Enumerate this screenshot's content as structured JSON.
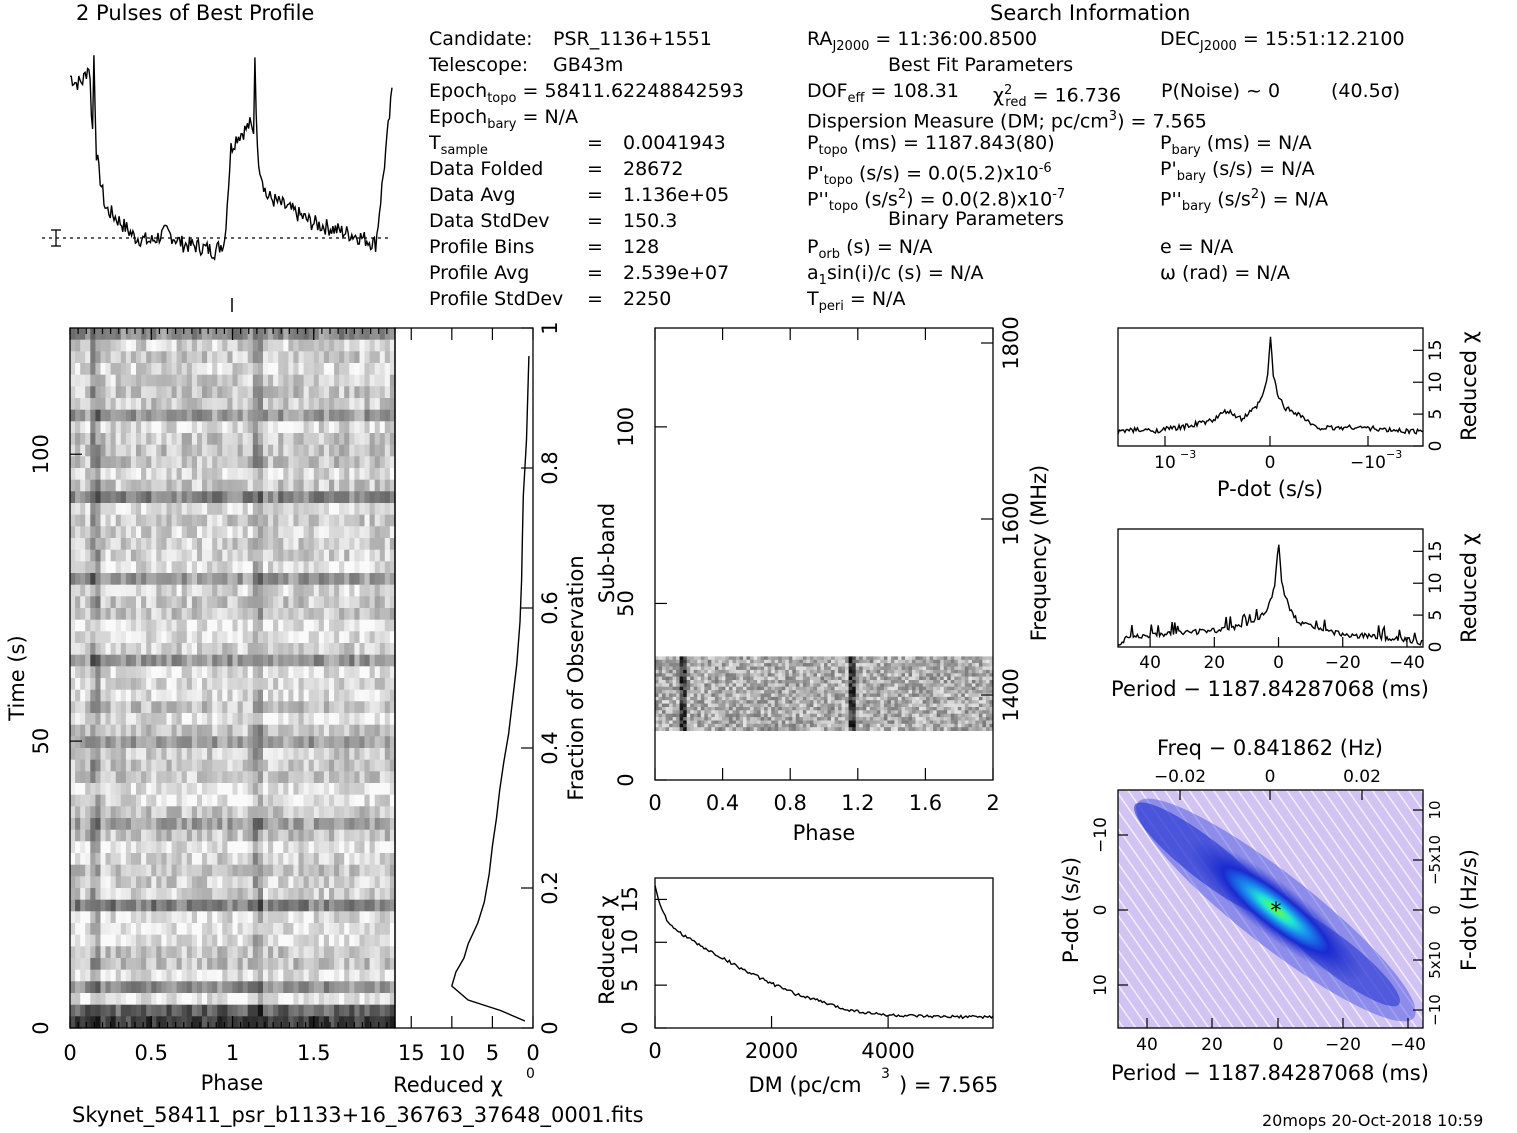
{
  "titles": {
    "profile": "2 Pulses of Best Profile",
    "search": "Search Information",
    "best_fit": "Best Fit Parameters",
    "binary": "Binary Parameters"
  },
  "info_left": {
    "candidate_label": "Candidate:",
    "candidate": "PSR_1136+1551",
    "telescope_label": "Telescope:",
    "telescope": "GB43m",
    "epoch_topo_label": "Epoch",
    "epoch_topo_sub": "topo",
    "epoch_topo": "= 58411.62248842593",
    "epoch_bary_label": "Epoch",
    "epoch_bary_sub": "bary",
    "epoch_bary": "= N/A",
    "tsample_label": "T",
    "tsample_sub": "sample",
    "tsample": "0.0041943",
    "data_folded_label": "Data Folded",
    "data_folded": "28672",
    "data_avg_label": "Data Avg",
    "data_avg": "1.136e+05",
    "data_std_label": "Data StdDev",
    "data_std": "150.3",
    "profile_bins_label": "Profile Bins",
    "profile_bins": "128",
    "profile_avg_label": "Profile Avg",
    "profile_avg": "2.539e+07",
    "profile_std_label": "Profile StdDev",
    "profile_std": "2250",
    "eq": "="
  },
  "info_mid": {
    "ra_label": "RA",
    "ra_sub": "J2000",
    "ra": "= 11:36:00.8500",
    "dof_label": "DOF",
    "dof_sub": "eff",
    "dof": "= 108.31",
    "chi_label": "χ",
    "chi_sup": "2",
    "chi_sub": "red",
    "chi": "= 16.736",
    "pnoise": "P(Noise) ~ 0",
    "sigma": "(40.5σ)",
    "dm_label": "Dispersion Measure (DM; pc/cm",
    "dm_sup": "3",
    "dm": ") = 7.565",
    "ptopo_label": "P",
    "ptopo_sub": "topo",
    "ptopo": "(ms) =  1187.843(80)",
    "pdtopo_label": "P'",
    "pdtopo_sub": "topo",
    "pdtopo": "(s/s) = 0.0(5.2)x10",
    "pdtopo_exp": "-6",
    "pddtopo_label": "P''",
    "pddtopo_sub": "topo",
    "pddtopo": "(s/s",
    "pddtopo_sup": "2",
    "pddtopo_rest": ") = 0.0(2.8)x10",
    "pddtopo_exp": "-7",
    "porb_label": "P",
    "porb_sub": "orb",
    "porb": "(s) = N/A",
    "a1_label": "a",
    "a1_sub": "1",
    "a1": "sin(i)/c (s) = N/A",
    "tperi_label": "T",
    "tperi_sub": "peri",
    "tperi": "= N/A"
  },
  "info_right": {
    "dec_label": "DEC",
    "dec_sub": "J2000",
    "dec": "= 15:51:12.2100",
    "pbary_label": "P",
    "pbary_sub": "bary",
    "pbary": "(ms) = N/A",
    "pdbary_label": "P'",
    "pdbary_sub": "bary",
    "pdbary": "(s/s) = N/A",
    "pddbary_label": "P''",
    "pddbary_sub": "bary",
    "pddbary": "(s/s",
    "pddbary_sup": "2",
    "pddbary_rest": ") = N/A",
    "e": "e = N/A",
    "omega": "ω (rad) = N/A"
  },
  "footer": {
    "filename": "Skynet_58411_psr_b1133+16_36763_37648_0001.fits",
    "stamp": "20mops 20-Oct-2018 10:59"
  },
  "chart_data": [
    {
      "type": "line",
      "id": "profile",
      "title": "2 Pulses of Best Profile",
      "x": [
        0,
        0.04,
        0.08,
        0.12,
        0.14,
        0.15,
        0.16,
        0.18,
        0.22,
        0.3,
        0.4,
        0.5,
        0.6,
        0.7,
        0.8,
        0.9,
        0.96,
        1.0,
        1.04,
        1.08,
        1.12,
        1.14,
        1.15,
        1.16,
        1.18,
        1.22,
        1.3,
        1.4,
        1.5,
        1.6,
        1.7,
        1.8,
        1.9,
        2.0
      ],
      "values": [
        0.85,
        0.82,
        0.83,
        0.9,
        0.6,
        1.0,
        0.55,
        0.45,
        0.3,
        0.25,
        0.18,
        0.16,
        0.2,
        0.15,
        0.14,
        0.12,
        0.16,
        0.55,
        0.6,
        0.62,
        0.65,
        0.6,
        1.0,
        0.55,
        0.47,
        0.35,
        0.32,
        0.28,
        0.24,
        0.22,
        0.2,
        0.18,
        0.15,
        0.78
      ],
      "xlim": [
        0,
        2
      ]
    },
    {
      "type": "heatmap",
      "id": "time-phase",
      "xlabel": "Phase",
      "ylabel": "Time (s)",
      "x_ticks": [
        "0",
        "0.5",
        "1",
        "1.5"
      ],
      "y_ticks": [
        "0",
        "50",
        "100"
      ],
      "xlim": [
        0,
        2
      ],
      "ylim": [
        0,
        122
      ]
    },
    {
      "type": "line",
      "id": "reduced-chi-time",
      "xlabel": "Reduced χ",
      "ylabel": "Fraction of Observation",
      "x_ticks": [
        "15",
        "10",
        "5",
        "0"
      ],
      "y_ticks": [
        "0",
        "0.2",
        "0.4",
        "0.6",
        "0.8",
        "1"
      ],
      "x": [
        1,
        4,
        8,
        10,
        9.5,
        8.5,
        8,
        6.8,
        6,
        5.4,
        5,
        4.5,
        4.1,
        3.6,
        3,
        2.6,
        2,
        1.6,
        1.4,
        1.3,
        1.2,
        1.0,
        0.8,
        0.7,
        0.6,
        0.5
      ],
      "y": [
        0.01,
        0.025,
        0.04,
        0.06,
        0.08,
        0.1,
        0.12,
        0.15,
        0.18,
        0.22,
        0.26,
        0.3,
        0.34,
        0.38,
        0.42,
        0.46,
        0.52,
        0.58,
        0.64,
        0.7,
        0.76,
        0.8,
        0.84,
        0.88,
        0.92,
        0.96
      ],
      "xlim": [
        17,
        0
      ],
      "ylim": [
        0,
        1
      ]
    },
    {
      "type": "heatmap",
      "id": "subband-phase",
      "xlabel": "Phase",
      "ylabel": "Sub-band",
      "y2label": "Frequency (MHz)",
      "x_ticks": [
        "0",
        "0.4",
        "0.8",
        "1.2",
        "1.6",
        "2"
      ],
      "y_ticks": [
        "0",
        "50",
        "100"
      ],
      "y2_ticks": [
        "1400",
        "1600",
        "1800"
      ],
      "xlim": [
        0,
        2
      ],
      "ylim": [
        0,
        128
      ],
      "band_range": [
        14,
        35
      ],
      "pulse_phases": [
        0.15,
        1.15
      ]
    },
    {
      "type": "line",
      "id": "dm-curve",
      "xlabel": "DM (pc/cm",
      "xlabel_sup": "3",
      "ylabel": "Reduced χ",
      "x_ticks": [
        "0",
        "2000",
        "4000"
      ],
      "y_ticks": [
        "0",
        "5",
        "10",
        "15"
      ],
      "x": [
        0,
        100,
        250,
        500,
        800,
        1200,
        1600,
        2000,
        2400,
        2800,
        3200,
        3600,
        4000,
        4400,
        4800,
        5200,
        5800
      ],
      "values": [
        16.7,
        14,
        12,
        10.8,
        9.5,
        8,
        6.5,
        5.2,
        4,
        3.2,
        2.3,
        1.8,
        1.5,
        1.4,
        1.3,
        1.3,
        1.3
      ],
      "xlim": [
        0,
        5800
      ],
      "ylim": [
        0,
        17.5
      ]
    },
    {
      "type": "line",
      "id": "pdot-curve",
      "xlabel": "P-dot (s/s)",
      "ylabel": "Reduced χ",
      "x_ticks": [
        "10",
        "0",
        "−10"
      ],
      "x_tick_exp": "−3",
      "y_ticks": [
        "0",
        "5",
        "10",
        "15"
      ],
      "x": [
        -1.0,
        -0.8,
        -0.6,
        -0.4,
        -0.3,
        -0.2,
        -0.1,
        -0.05,
        -0.02,
        0,
        0.02,
        0.05,
        0.1,
        0.2,
        0.3,
        0.4,
        0.6,
        0.8,
        1.0
      ],
      "values": [
        2.5,
        2.4,
        3,
        4,
        5.5,
        4.2,
        6,
        8,
        11,
        17,
        11,
        8,
        6,
        5,
        3,
        2.8,
        3,
        2.5,
        2.3
      ],
      "ylim": [
        0,
        18.5
      ]
    },
    {
      "type": "line",
      "id": "period-curve",
      "xlabel": "Period − 1187.84287068 (ms)",
      "ylabel": "Reduced χ",
      "x_ticks": [
        "40",
        "20",
        "0",
        "−20",
        "−40"
      ],
      "y_ticks": [
        "0",
        "5",
        "10",
        "15"
      ],
      "x": [
        48,
        40,
        30,
        20,
        15,
        10,
        6,
        4,
        2,
        1,
        0,
        -1,
        -2,
        -4,
        -6,
        -10,
        -15,
        -20,
        -30,
        -40,
        -45
      ],
      "values": [
        1.5,
        1.8,
        2.2,
        2.6,
        3,
        3.5,
        4.5,
        5.5,
        8,
        10,
        17,
        10,
        8,
        5.5,
        4,
        3.2,
        2.4,
        2,
        1.6,
        1.2,
        0.6
      ],
      "xlim": [
        50,
        -45
      ],
      "ylim": [
        0,
        18.5
      ]
    },
    {
      "type": "heatmap",
      "id": "pdot-period",
      "title": "Freq − 0.841862 (Hz)",
      "xlabel": "Period − 1187.84287068 (ms)",
      "ylabel": "P-dot (s/s)",
      "y2label": "F-dot (Hz/s)",
      "x_ticks": [
        "40",
        "20",
        "0",
        "−20",
        "−40"
      ],
      "top_ticks": [
        "−0.02",
        "0",
        "0.02"
      ],
      "y_ticks": [
        "10",
        "0",
        "−10"
      ],
      "y_tick_exp": "−3",
      "y2_ticks": [
        "−10",
        "5x10",
        "0",
        "−5x10",
        "10"
      ],
      "xlim": [
        50,
        -45
      ]
    }
  ],
  "colors": {
    "ink": "#000000",
    "map_bg": "#c8b8f0",
    "map_blue": "#2a3ad8",
    "map_cyan": "#20e0f0",
    "map_green": "#60f040"
  }
}
